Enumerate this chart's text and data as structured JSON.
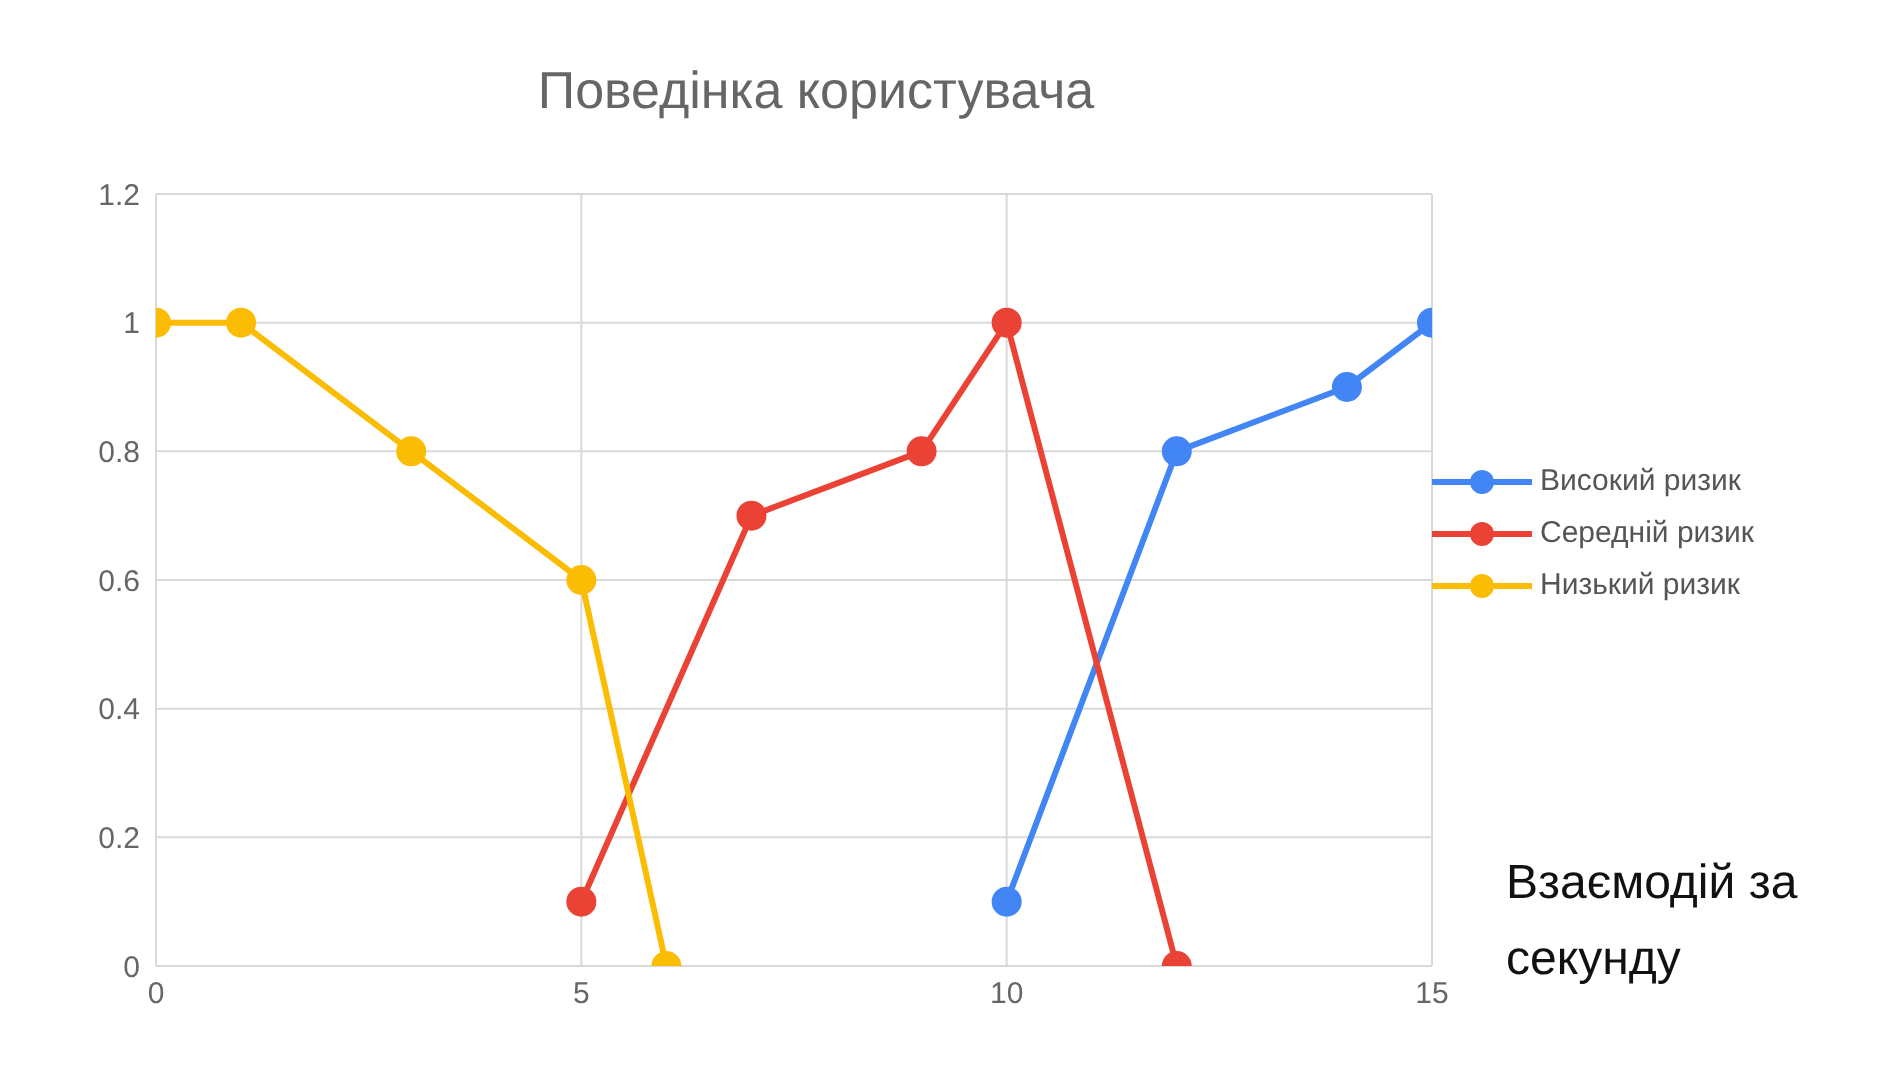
{
  "chart_data": {
    "type": "line",
    "title": "Поведінка користувача",
    "xlabel": "Взаємодій за секунду",
    "xlim": [
      0,
      15
    ],
    "xticks": [
      0,
      5,
      10,
      15
    ],
    "ylim": [
      0,
      1.2
    ],
    "yticks": [
      0,
      0.2,
      0.4,
      0.6,
      0.8,
      1,
      1.2
    ],
    "grid": true,
    "legend": "right",
    "marker": "circle",
    "line_style": "solid",
    "series": [
      {
        "name": "Високий ризик",
        "color": "#4285f4",
        "x": [
          10,
          12,
          14,
          15
        ],
        "values": [
          0.1,
          0.8,
          0.9,
          1
        ]
      },
      {
        "name": "Середній ризик",
        "color": "#ea4335",
        "x": [
          5,
          7,
          9,
          10,
          12
        ],
        "values": [
          0.1,
          0.7,
          0.8,
          1,
          0
        ]
      },
      {
        "name": "Низький ризик",
        "color": "#fbbc04",
        "x": [
          0,
          1,
          3,
          5,
          6
        ],
        "values": [
          1,
          1,
          0.8,
          0.6,
          0
        ]
      }
    ]
  }
}
